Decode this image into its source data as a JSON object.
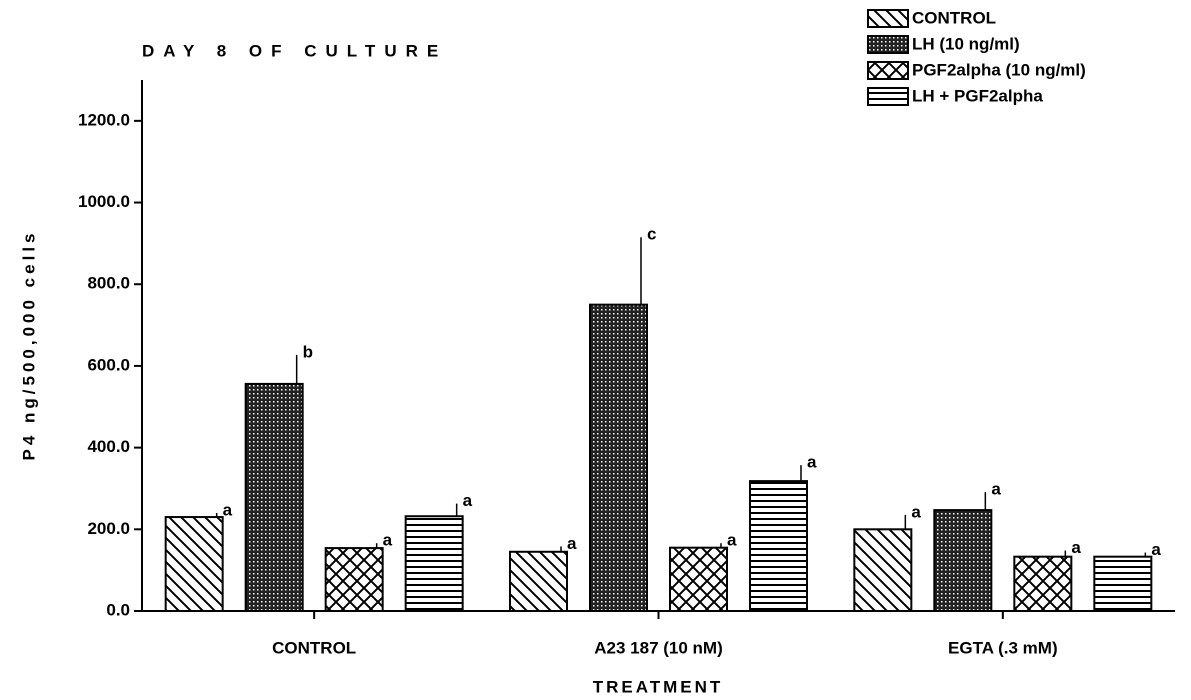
{
  "chart_data": {
    "type": "bar",
    "title": "DAY 8 OF CULTURE",
    "x_label": "TREATMENT",
    "y_label": "P4 ng/500,000 cells",
    "categories": [
      "CONTROL",
      "A23 187 (10 nM)",
      "EGTA (.3 mM)"
    ],
    "series": [
      {
        "name": "CONTROL",
        "color": "#000000",
        "pattern": "diagonal",
        "values": [
          230,
          145,
          200
        ],
        "errors": [
          10,
          13,
          35
        ],
        "letters": [
          "a",
          "a",
          "a"
        ]
      },
      {
        "name": "LH (10 ng/ml)",
        "color": "#000000",
        "pattern": "dots",
        "values": [
          556,
          750,
          247
        ],
        "errors": [
          71,
          165,
          44
        ],
        "letters": [
          "b",
          "c",
          "a"
        ]
      },
      {
        "name": "PGF2alpha (10 ng/ml)",
        "color": "#000000",
        "pattern": "crosshatch",
        "values": [
          154,
          155,
          133
        ],
        "errors": [
          12,
          11,
          15
        ],
        "letters": [
          "a",
          "a",
          "a"
        ]
      },
      {
        "name": "LH + PGF2alpha",
        "color": "#000000",
        "pattern": "horizontal",
        "values": [
          232,
          318,
          133
        ],
        "errors": [
          31,
          39,
          10
        ],
        "letters": [
          "a",
          "a",
          "a"
        ]
      }
    ],
    "ylim": [
      0,
      1300
    ],
    "yticks": [
      {
        "value": 0,
        "label": "0.0"
      },
      {
        "value": 200,
        "label": "200.0"
      },
      {
        "value": 400,
        "label": "400.0"
      },
      {
        "value": 600,
        "label": "600.0"
      },
      {
        "value": 800,
        "label": "800.0"
      },
      {
        "value": 1000,
        "label": "1000.0"
      },
      {
        "value": 1200,
        "label": "1200.0"
      }
    ],
    "grid": false,
    "legend": "top-right"
  }
}
